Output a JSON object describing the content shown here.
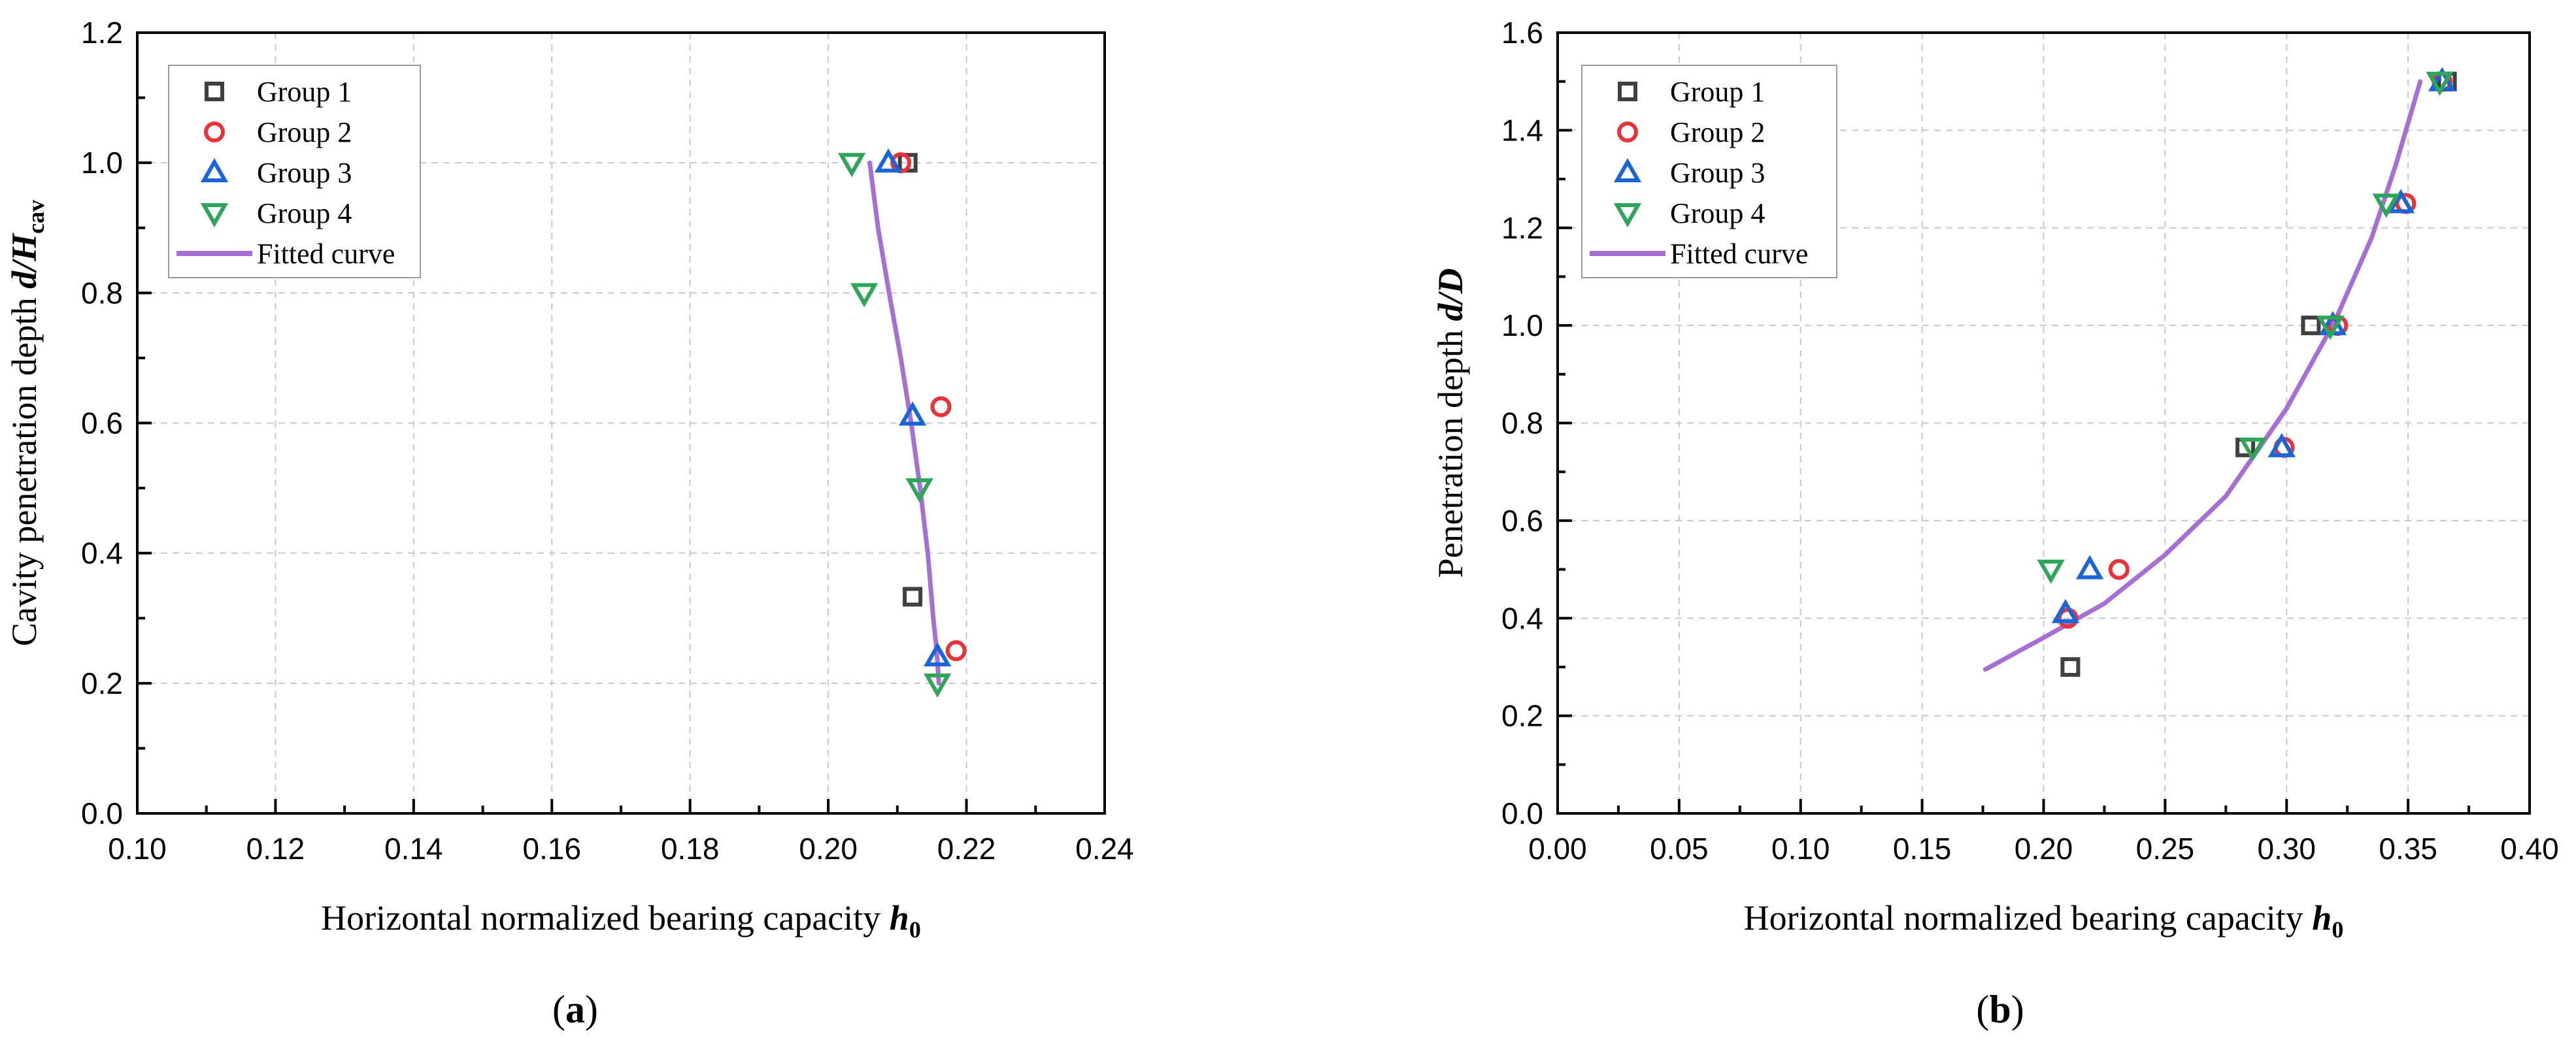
{
  "chart_data": [
    {
      "type": "scatter",
      "panel_label": "(a)",
      "xlabel": "Horizontal normalized bearing capacity",
      "xlabel_symbol": "h",
      "xlabel_sub": "0",
      "ylabel": "Cavity penetration depth",
      "ylabel_symbol": "d/H",
      "ylabel_sub": "cav",
      "xlim": [
        0.1,
        0.24
      ],
      "ylim": [
        0.0,
        1.2
      ],
      "xticks": [
        0.1,
        0.12,
        0.14,
        0.16,
        0.18,
        0.2,
        0.22,
        0.24
      ],
      "xtick_labels": [
        "0.10",
        "0.12",
        "0.14",
        "0.16",
        "0.18",
        "0.20",
        "0.22",
        "0.24"
      ],
      "yticks": [
        0.0,
        0.2,
        0.4,
        0.6,
        0.8,
        1.0,
        1.2
      ],
      "ytick_labels": [
        "0.0",
        "0.2",
        "0.4",
        "0.6",
        "0.8",
        "1.0",
        "1.2"
      ],
      "grid": true,
      "legend_position": "top-left",
      "series": [
        {
          "name": "Group 1",
          "marker": "square",
          "color": "#404040",
          "x": [
            0.2115,
            0.2122
          ],
          "y": [
            1.0,
            0.333
          ]
        },
        {
          "name": "Group 2",
          "marker": "circle",
          "color": "#e8333a",
          "x": [
            0.2105,
            0.2163,
            0.2185
          ],
          "y": [
            1.0,
            0.625,
            0.25
          ]
        },
        {
          "name": "Group 3",
          "marker": "triangle-up",
          "color": "#1a66d9",
          "x": [
            0.2087,
            0.2122,
            0.2158
          ],
          "y": [
            1.0,
            0.611,
            0.241
          ]
        },
        {
          "name": "Group 4",
          "marker": "triangle-down",
          "color": "#2ea65a",
          "x": [
            0.2034,
            0.2052,
            0.2132,
            0.2158
          ],
          "y": [
            1.0,
            0.8,
            0.5,
            0.2
          ]
        },
        {
          "name": "Fitted curve",
          "type": "line",
          "color": "#a66fd6",
          "x": [
            0.206,
            0.2072,
            0.2088,
            0.2105,
            0.212,
            0.2133,
            0.2144,
            0.2152,
            0.2157,
            0.216
          ],
          "y": [
            1.0,
            0.9,
            0.8,
            0.7,
            0.6,
            0.5,
            0.4,
            0.3,
            0.25,
            0.2
          ]
        }
      ]
    },
    {
      "type": "scatter",
      "panel_label": "(b)",
      "xlabel": "Horizontal normalized bearing capacity",
      "xlabel_symbol": "h",
      "xlabel_sub": "0",
      "ylabel": "Penetration depth",
      "ylabel_symbol": "d/D",
      "ylabel_sub": "",
      "xlim": [
        0.0,
        0.4
      ],
      "ylim": [
        0.0,
        1.6
      ],
      "xticks": [
        0.0,
        0.05,
        0.1,
        0.15,
        0.2,
        0.25,
        0.3,
        0.35,
        0.4
      ],
      "xtick_labels": [
        "0.00",
        "0.05",
        "0.10",
        "0.15",
        "0.20",
        "0.25",
        "0.30",
        "0.35",
        "0.40"
      ],
      "yticks": [
        0.0,
        0.2,
        0.4,
        0.6,
        0.8,
        1.0,
        1.2,
        1.4,
        1.6
      ],
      "ytick_labels": [
        "0.0",
        "0.2",
        "0.4",
        "0.6",
        "0.8",
        "1.0",
        "1.2",
        "1.4",
        "1.6"
      ],
      "grid": true,
      "legend_position": "top-left",
      "series": [
        {
          "name": "Group 1",
          "marker": "square",
          "color": "#404040",
          "x": [
            0.211,
            0.283,
            0.31,
            0.366
          ],
          "y": [
            0.3,
            0.75,
            1.0,
            1.5
          ]
        },
        {
          "name": "Group 2",
          "marker": "circle",
          "color": "#e8333a",
          "x": [
            0.21,
            0.231,
            0.299,
            0.321,
            0.349,
            0.364
          ],
          "y": [
            0.4,
            0.5,
            0.75,
            1.0,
            1.25,
            1.5
          ]
        },
        {
          "name": "Group 3",
          "marker": "triangle-up",
          "color": "#1a66d9",
          "x": [
            0.209,
            0.219,
            0.298,
            0.319,
            0.347,
            0.364
          ],
          "y": [
            0.41,
            0.5,
            0.75,
            1.0,
            1.25,
            1.5
          ]
        },
        {
          "name": "Group 4",
          "marker": "triangle-down",
          "color": "#2ea65a",
          "x": [
            0.203,
            0.286,
            0.318,
            0.341,
            0.363
          ],
          "y": [
            0.5,
            0.75,
            1.0,
            1.25,
            1.5
          ]
        },
        {
          "name": "Fitted curve",
          "type": "line",
          "color": "#a66fd6",
          "x": [
            0.176,
            0.2,
            0.225,
            0.25,
            0.275,
            0.3,
            0.32,
            0.335,
            0.345,
            0.355
          ],
          "y": [
            0.295,
            0.36,
            0.43,
            0.53,
            0.65,
            0.83,
            1.01,
            1.18,
            1.33,
            1.5
          ]
        }
      ]
    }
  ]
}
